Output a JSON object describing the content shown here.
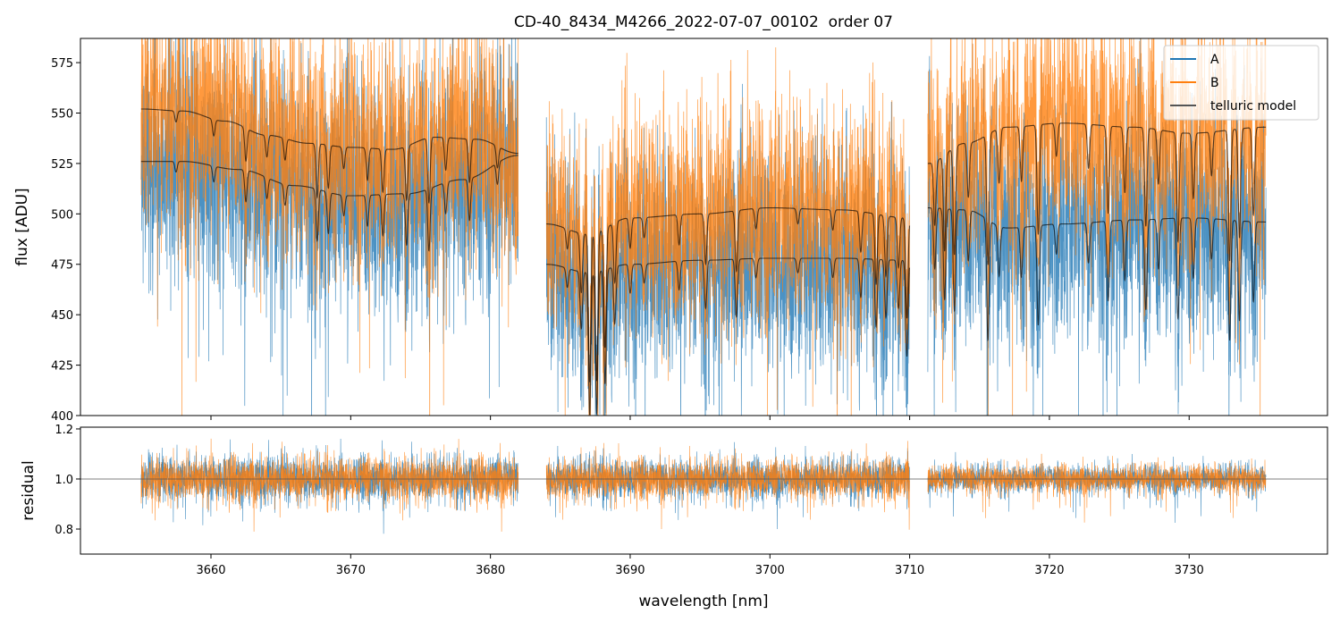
{
  "chart_data": {
    "type": "line",
    "title": "CD-40_8434_M4266_2022-07-07_00102  order 07",
    "xlabel": "wavelength [nm]",
    "xlim": [
      3650.66,
      3739.9
    ],
    "x_ticks": [
      3660,
      3670,
      3680,
      3690,
      3700,
      3710,
      3720,
      3730
    ],
    "top_panel": {
      "ylabel": "flux [ADU]",
      "ylim": [
        400,
        587
      ],
      "y_ticks": [
        400,
        425,
        450,
        475,
        500,
        525,
        550,
        575
      ]
    },
    "bottom_panel": {
      "ylabel": "residual",
      "ylim": [
        0.7,
        1.207
      ],
      "y_ticks": [
        0.8,
        1.0,
        1.2
      ],
      "reference_line": 1.0
    },
    "legend": {
      "placement": "top-right",
      "entries": [
        {
          "label": "A",
          "color": "#1f77b4"
        },
        {
          "label": "B",
          "color": "#ff7f0e"
        },
        {
          "label": "telluric model",
          "color": "#555555"
        }
      ]
    },
    "segments": [
      {
        "range": [
          3655,
          3682
        ],
        "residual_sigma": 0.045,
        "A_continuum": [
          [
            3655,
            526
          ],
          [
            3658,
            526
          ],
          [
            3662,
            522
          ],
          [
            3666,
            514
          ],
          [
            3670,
            509
          ],
          [
            3674,
            510
          ],
          [
            3678,
            517
          ],
          [
            3682,
            529
          ]
        ],
        "B_continuum": [
          [
            3655,
            552
          ],
          [
            3658,
            551
          ],
          [
            3661,
            546
          ],
          [
            3664,
            539
          ],
          [
            3667,
            535
          ],
          [
            3670,
            533
          ],
          [
            3673,
            532
          ],
          [
            3676,
            538
          ],
          [
            3679,
            537
          ],
          [
            3682,
            530
          ]
        ]
      },
      {
        "range": [
          3684,
          3710
        ],
        "residual_sigma": 0.04,
        "A_continuum": [
          [
            3684,
            475
          ],
          [
            3687,
            471
          ],
          [
            3690,
            475
          ],
          [
            3695,
            477
          ],
          [
            3700,
            478
          ],
          [
            3705,
            478
          ],
          [
            3710,
            477
          ]
        ],
        "B_continuum": [
          [
            3684,
            495
          ],
          [
            3687,
            490
          ],
          [
            3690,
            498
          ],
          [
            3695,
            500
          ],
          [
            3700,
            503
          ],
          [
            3705,
            502
          ],
          [
            3710,
            498
          ]
        ]
      },
      {
        "range": [
          3711.3,
          3735.5
        ],
        "residual_sigma": 0.028,
        "A_continuum": [
          [
            3711.3,
            503
          ],
          [
            3714,
            502
          ],
          [
            3717,
            493
          ],
          [
            3721,
            495
          ],
          [
            3726,
            497
          ],
          [
            3730,
            498
          ],
          [
            3735.5,
            496
          ]
        ],
        "B_continuum": [
          [
            3711.3,
            525
          ],
          [
            3714,
            535
          ],
          [
            3717,
            543
          ],
          [
            3721,
            545
          ],
          [
            3726,
            543
          ],
          [
            3730,
            540
          ],
          [
            3735.5,
            543
          ]
        ]
      }
    ],
    "telluric_lines": [
      [
        3657.5,
        0.01
      ],
      [
        3660.2,
        0.015
      ],
      [
        3662.5,
        0.03
      ],
      [
        3664,
        0.02
      ],
      [
        3665.3,
        0.02
      ],
      [
        3667.6,
        0.05
      ],
      [
        3668.4,
        0.04
      ],
      [
        3669.5,
        0.02
      ],
      [
        3671.2,
        0.03
      ],
      [
        3672.3,
        0.04
      ],
      [
        3674,
        0.05
      ],
      [
        3675.6,
        0.06
      ],
      [
        3676.8,
        0.03
      ],
      [
        3678.5,
        0.04
      ],
      [
        3680.5,
        0.02
      ],
      [
        3685.5,
        0.02
      ],
      [
        3686.5,
        0.06
      ],
      [
        3687.1,
        0.15
      ],
      [
        3687.6,
        0.15
      ],
      [
        3688.2,
        0.12
      ],
      [
        3688.9,
        0.06
      ],
      [
        3690,
        0.03
      ],
      [
        3691,
        0.02
      ],
      [
        3693.5,
        0.03
      ],
      [
        3695.4,
        0.05
      ],
      [
        3697.6,
        0.06
      ],
      [
        3699,
        0.02
      ],
      [
        3702,
        0.015
      ],
      [
        3704.5,
        0.02
      ],
      [
        3706.5,
        0.04
      ],
      [
        3707.6,
        0.07
      ],
      [
        3708.3,
        0.06
      ],
      [
        3709.2,
        0.05
      ],
      [
        3709.8,
        0.1
      ],
      [
        3711.8,
        0.06
      ],
      [
        3712.5,
        0.09
      ],
      [
        3713.2,
        0.1
      ],
      [
        3714.2,
        0.05
      ],
      [
        3715.6,
        0.12
      ],
      [
        3716.4,
        0.05
      ],
      [
        3718,
        0.05
      ],
      [
        3719.2,
        0.1
      ],
      [
        3720.5,
        0.03
      ],
      [
        3722.8,
        0.04
      ],
      [
        3724.2,
        0.08
      ],
      [
        3725.4,
        0.06
      ],
      [
        3726.9,
        0.09
      ],
      [
        3727.8,
        0.05
      ],
      [
        3729.2,
        0.1
      ],
      [
        3730.3,
        0.06
      ],
      [
        3731.6,
        0.04
      ],
      [
        3732.9,
        0.12
      ],
      [
        3733.6,
        0.1
      ],
      [
        3734.6,
        0.08
      ]
    ]
  }
}
